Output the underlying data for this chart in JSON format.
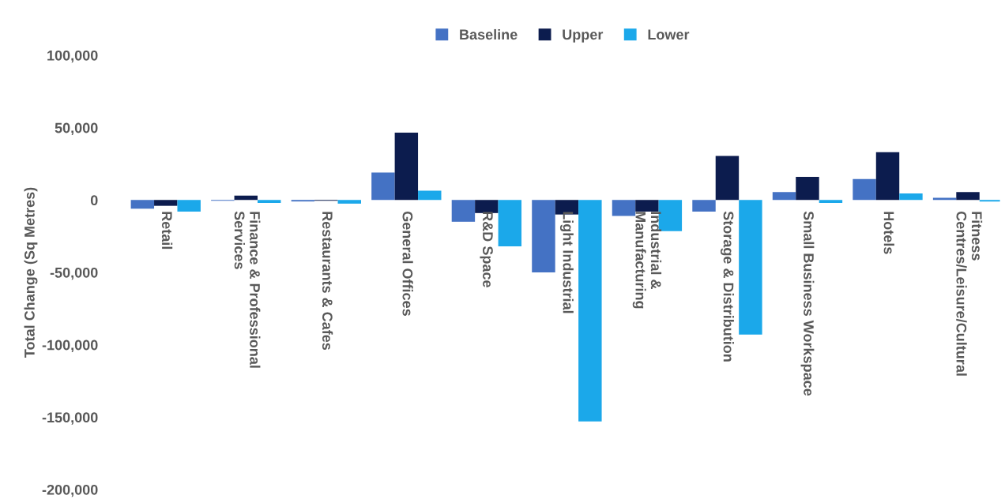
{
  "chart_data": {
    "type": "bar",
    "ylabel": "Total Change (Sq Metres)",
    "categories": [
      "Retail",
      "Finance & Professional\nServices",
      "Restaurants & Cafes",
      "General Offices",
      "R&D Space",
      "Light Industrial",
      "Industrial &\nManufacturing",
      "Storage & Distribution",
      "Small Business Workspace",
      "Hotels",
      "Fitness\nCentres/Leisure/Cultural"
    ],
    "series": [
      {
        "name": "Baseline",
        "color": "#4472c4",
        "values": [
          -6000,
          -500,
          -1000,
          19000,
          -15000,
          -50000,
          -11000,
          -8000,
          5500,
          14500,
          1500
        ]
      },
      {
        "name": "Upper",
        "color": "#0c1c4e",
        "values": [
          -4000,
          3000,
          -500,
          46500,
          -9000,
          -10000,
          -8000,
          30500,
          16000,
          33000,
          5500
        ]
      },
      {
        "name": "Lower",
        "color": "#1ba8ea",
        "values": [
          -8000,
          -2000,
          -2500,
          6500,
          -32000,
          -153000,
          -21500,
          -93000,
          -2000,
          4500,
          -1000
        ]
      }
    ],
    "ylim": [
      -200000,
      100000
    ],
    "yticks": [
      {
        "value": -200000,
        "label": "-200,000"
      },
      {
        "value": -150000,
        "label": "-150,000"
      },
      {
        "value": -100000,
        "label": "-100,000"
      },
      {
        "value": -50000,
        "label": "-50,000"
      },
      {
        "value": 0,
        "label": "0"
      },
      {
        "value": 50000,
        "label": "50,000"
      },
      {
        "value": 100000,
        "label": "100,000"
      }
    ],
    "legend": "top",
    "grid": false
  }
}
